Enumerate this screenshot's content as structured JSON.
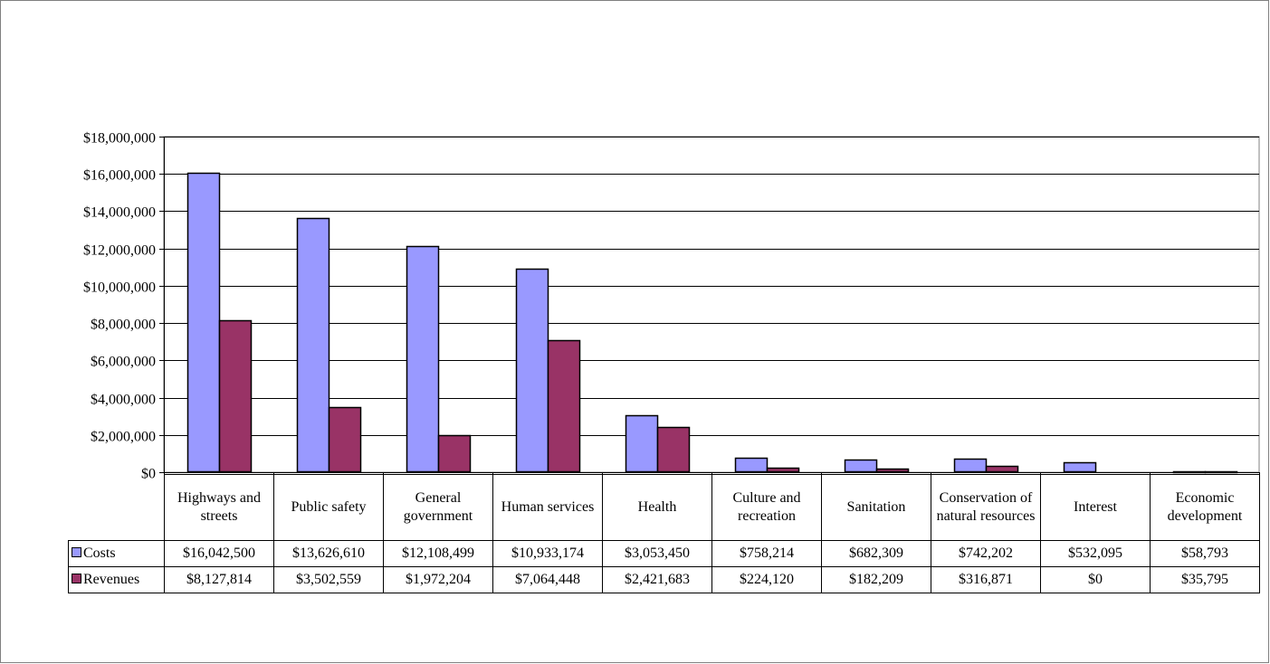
{
  "chart_data": {
    "type": "bar",
    "title": "",
    "xlabel": "",
    "ylabel": "",
    "ylim": [
      0,
      18000000
    ],
    "yticks": [
      0,
      2000000,
      4000000,
      6000000,
      8000000,
      10000000,
      12000000,
      14000000,
      16000000,
      18000000
    ],
    "ytick_labels": [
      "$0",
      "$2,000,000",
      "$4,000,000",
      "$6,000,000",
      "$8,000,000",
      "$10,000,000",
      "$12,000,000",
      "$14,000,000",
      "$16,000,000",
      "$18,000,000"
    ],
    "grid": true,
    "legend": "data table below chart",
    "categories": [
      "Highways and streets",
      "Public safety",
      "General government",
      "Human services",
      "Health",
      "Culture and recreation",
      "Sanitation",
      "Conservation of natural resources",
      "Interest",
      "Economic development"
    ],
    "series": [
      {
        "name": "Costs",
        "color": "#9999FF",
        "values": [
          16042500,
          13626610,
          12108499,
          10933174,
          3053450,
          758214,
          682309,
          742202,
          532095,
          58793
        ],
        "labels": [
          "$16,042,500",
          "$13,626,610",
          "$12,108,499",
          "$10,933,174",
          "$3,053,450",
          "$758,214",
          "$682,309",
          "$742,202",
          "$532,095",
          "$58,793"
        ]
      },
      {
        "name": "Revenues",
        "color": "#993366",
        "values": [
          8127814,
          3502559,
          1972204,
          7064448,
          2421683,
          224120,
          182209,
          316871,
          0,
          35795
        ],
        "labels": [
          "$8,127,814",
          "$3,502,559",
          "$1,972,204",
          "$7,064,448",
          "$2,421,683",
          "$224,120",
          "$182,209",
          "$316,871",
          "$0",
          "$35,795"
        ]
      }
    ]
  }
}
